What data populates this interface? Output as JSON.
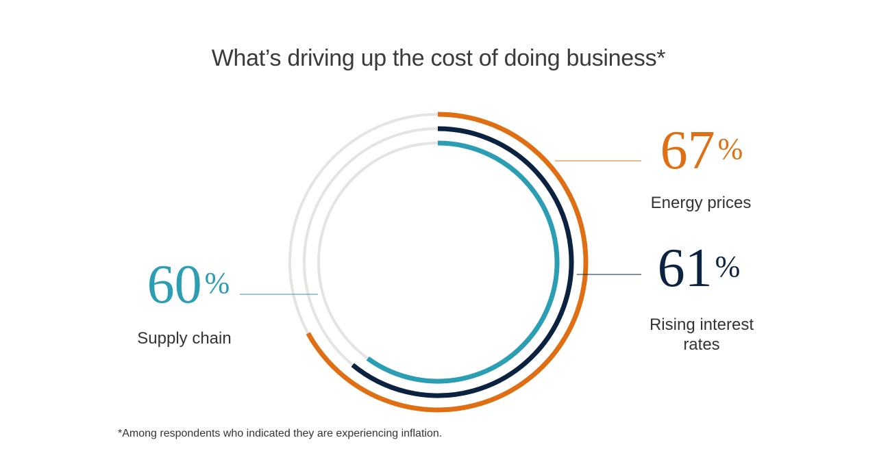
{
  "title": "What’s driving up the cost of doing business*",
  "footnote": "*Among respondents who indicated they are experiencing inflation.",
  "colors": {
    "track": "#e4e4e4",
    "energy": "#df6f12",
    "interest": "#0c2241",
    "supply": "#2b9eb3",
    "leader": "#8a8a8a"
  },
  "chart_data": {
    "type": "radial-bar",
    "unit": "%",
    "max": 100,
    "series": [
      {
        "key": "energy",
        "name": "Energy prices",
        "value": 67,
        "value_text": "67",
        "label_lines": [
          "Energy prices"
        ]
      },
      {
        "key": "interest",
        "name": "Rising interest rates",
        "value": 61,
        "value_text": "61",
        "label_lines": [
          "Rising interest",
          "rates"
        ]
      },
      {
        "key": "supply",
        "name": "Supply chain",
        "value": 60,
        "value_text": "60",
        "label_lines": [
          "Supply chain"
        ]
      }
    ]
  }
}
